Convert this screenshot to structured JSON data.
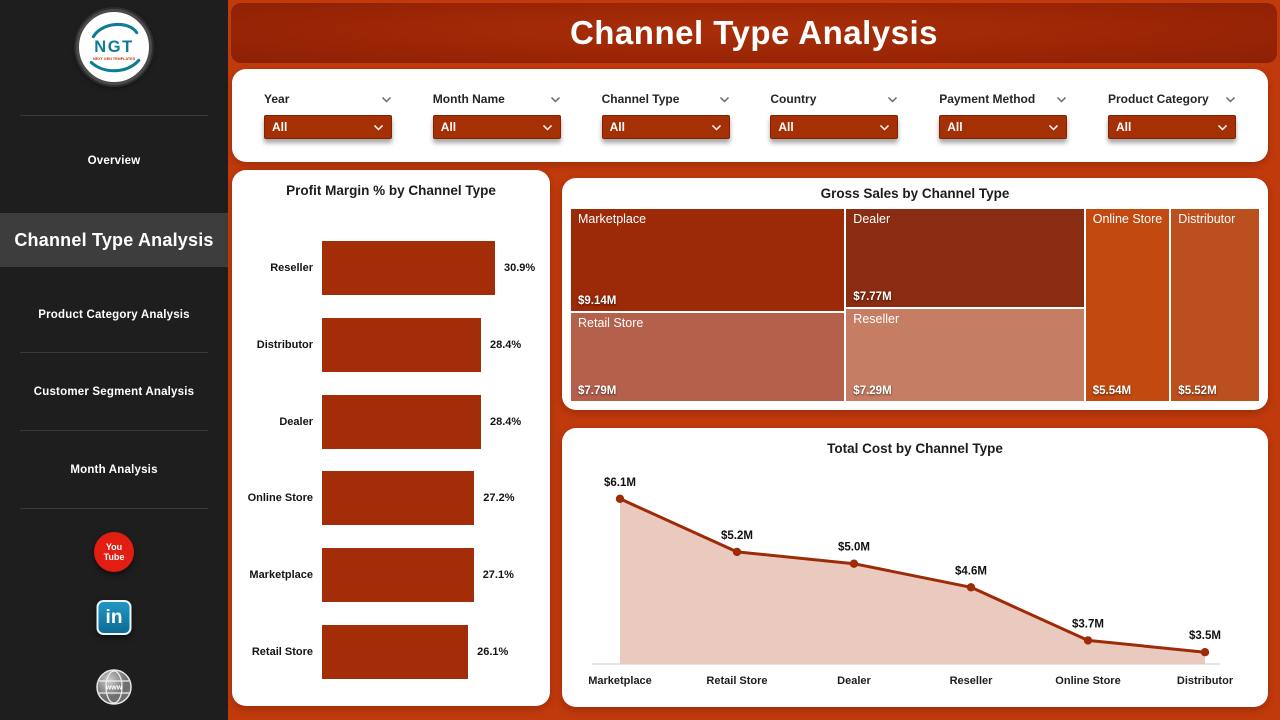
{
  "header": {
    "title": "Channel Type Analysis"
  },
  "sidebar": {
    "logo_text": "NGT",
    "logo_subtext": "NEXT GEN TEMPLATES",
    "items": [
      {
        "label": "Overview",
        "active": false
      },
      {
        "label": "Channel Type Analysis",
        "active": true
      },
      {
        "label": "Product Category Analysis",
        "active": false
      },
      {
        "label": "Customer Segment Analysis",
        "active": false
      },
      {
        "label": "Month Analysis",
        "active": false
      }
    ],
    "social": [
      {
        "name": "YouTube",
        "lines": [
          "You",
          "Tube"
        ]
      },
      {
        "name": "LinkedIn",
        "lines": [
          "in"
        ]
      },
      {
        "name": "Website",
        "lines": [
          "www"
        ]
      }
    ]
  },
  "filters": [
    {
      "label": "Year",
      "value": "All"
    },
    {
      "label": "Month Name",
      "value": "All"
    },
    {
      "label": "Channel Type",
      "value": "All"
    },
    {
      "label": "Country",
      "value": "All"
    },
    {
      "label": "Payment Method",
      "value": "All"
    },
    {
      "label": "Product Category",
      "value": "All"
    }
  ],
  "chart_data": [
    {
      "type": "bar",
      "orientation": "horizontal",
      "title": "Profit Margin % by Channel Type",
      "categories": [
        "Reseller",
        "Distributor",
        "Dealer",
        "Online Store",
        "Marketplace",
        "Retail Store"
      ],
      "values": [
        30.9,
        28.4,
        28.4,
        27.2,
        27.1,
        26.1
      ],
      "value_labels": [
        "30.9%",
        "28.4%",
        "28.4%",
        "27.2%",
        "27.1%",
        "26.1%"
      ],
      "bar_color": "#a32d08",
      "xlim": [
        0,
        32
      ],
      "grid": false
    },
    {
      "type": "treemap",
      "title": "Gross Sales by Channel Type",
      "items": [
        {
          "name": "Marketplace",
          "value": 9.14,
          "value_label": "$9.14M",
          "color": "#9c2907",
          "rect": {
            "x": 0,
            "y": 0,
            "w": 39.9,
            "h": 53.5
          }
        },
        {
          "name": "Retail Store",
          "value": 7.79,
          "value_label": "$7.79M",
          "color": "#b4604b",
          "rect": {
            "x": 0,
            "y": 53.5,
            "w": 39.9,
            "h": 46.5
          }
        },
        {
          "name": "Dealer",
          "value": 7.77,
          "value_label": "$7.77M",
          "color": "#8a2c12",
          "rect": {
            "x": 39.9,
            "y": 0,
            "w": 34.7,
            "h": 51.5
          }
        },
        {
          "name": "Reseller",
          "value": 7.29,
          "value_label": "$7.29M",
          "color": "#c57e63",
          "rect": {
            "x": 39.9,
            "y": 51.5,
            "w": 34.7,
            "h": 48.5
          }
        },
        {
          "name": "Online Store",
          "value": 5.54,
          "value_label": "$5.54M",
          "color": "#c24a10",
          "rect": {
            "x": 74.6,
            "y": 0,
            "w": 12.4,
            "h": 100
          }
        },
        {
          "name": "Distributor",
          "value": 5.52,
          "value_label": "$5.52M",
          "color": "#bc4f1e",
          "rect": {
            "x": 87.0,
            "y": 0,
            "w": 13.0,
            "h": 100
          }
        }
      ]
    },
    {
      "type": "area",
      "title": "Total Cost by Channel Type",
      "categories": [
        "Marketplace",
        "Retail Store",
        "Dealer",
        "Reseller",
        "Online Store",
        "Distributor"
      ],
      "values": [
        6.1,
        5.2,
        5.0,
        4.6,
        3.7,
        3.5
      ],
      "value_labels": [
        "$6.1M",
        "$5.2M",
        "$5.0M",
        "$4.6M",
        "$3.7M",
        "$3.5M"
      ],
      "line_color": "#9e2b07",
      "fill_color": "#e8c6ba",
      "y_min_hint": 3.3,
      "grid": false,
      "legend": "none"
    }
  ],
  "theme": {
    "page_background": "#c13a0c",
    "banner_background": "#9a2506",
    "sidebar_background": "#1e1e1e",
    "active_nav_background": "#3d3d3d",
    "card_background": "#ffffff",
    "slicer_background": "#a53005",
    "text_dark": "#1c1c1c",
    "text_light": "#ffffff",
    "youtube_red": "#e21d12",
    "linkedin_blue": "#0e76a8"
  }
}
